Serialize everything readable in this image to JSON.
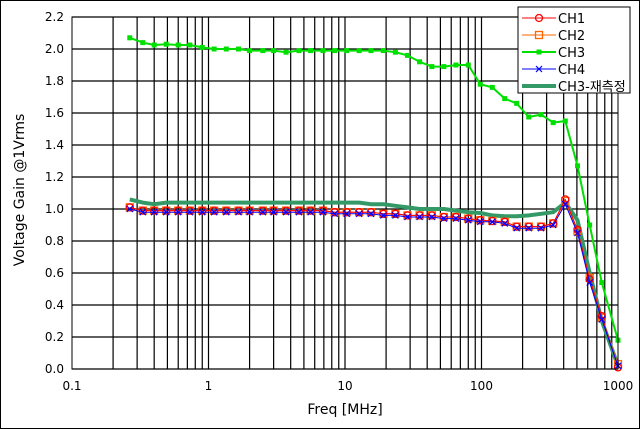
{
  "chart_data": {
    "type": "line",
    "title": "",
    "xlabel": "Freq [MHz]",
    "ylabel": "Voltage Gain @1Vrms",
    "xscale": "log",
    "xlim": [
      0.1,
      1000
    ],
    "ylim": [
      0,
      2.2
    ],
    "grid": true,
    "legend_position": "top-right",
    "x_ticks": [
      "0.1",
      "1",
      "10",
      "100",
      "1000"
    ],
    "y_ticks": [
      "0.0",
      "0.2",
      "0.4",
      "0.6",
      "0.8",
      "1.0",
      "1.2",
      "1.4",
      "1.6",
      "1.8",
      "2.0",
      "2.2"
    ],
    "x": [
      0.265,
      0.33,
      0.4,
      0.49,
      0.6,
      0.73,
      0.9,
      1.1,
      1.35,
      1.66,
      2.0,
      2.5,
      3.0,
      3.7,
      4.6,
      5.6,
      6.9,
      8.4,
      10.3,
      12.7,
      15.5,
      19.1,
      23.4,
      28.7,
      35.2,
      43.3,
      53,
      65,
      80,
      98,
      120,
      148,
      181,
      222,
      273,
      335,
      411,
      505,
      620,
      761,
      1000
    ],
    "series": [
      {
        "name": "CH1",
        "color": "#ff0000",
        "marker": "circle",
        "width": 1,
        "values": [
          1.01,
          0.99,
          0.99,
          0.99,
          0.99,
          0.99,
          0.99,
          0.99,
          0.99,
          0.99,
          0.99,
          0.99,
          0.99,
          0.99,
          0.99,
          0.99,
          0.99,
          0.98,
          0.98,
          0.98,
          0.98,
          0.97,
          0.97,
          0.96,
          0.96,
          0.96,
          0.95,
          0.95,
          0.94,
          0.93,
          0.925,
          0.92,
          0.89,
          0.89,
          0.89,
          0.91,
          1.06,
          0.87,
          0.56,
          0.33,
          0.01
        ]
      },
      {
        "name": "CH2",
        "color": "#ff6600",
        "marker": "square",
        "width": 1,
        "values": [
          1.01,
          0.99,
          0.99,
          0.99,
          0.99,
          0.99,
          0.99,
          0.99,
          0.99,
          0.99,
          0.99,
          0.99,
          0.99,
          0.99,
          0.99,
          0.99,
          0.99,
          0.98,
          0.98,
          0.98,
          0.98,
          0.97,
          0.97,
          0.96,
          0.96,
          0.96,
          0.95,
          0.95,
          0.94,
          0.93,
          0.925,
          0.92,
          0.89,
          0.89,
          0.89,
          0.91,
          1.05,
          0.86,
          0.57,
          0.32,
          0.03
        ]
      },
      {
        "name": "CH3",
        "color": "#00e000",
        "marker": "filled-square",
        "width": 2,
        "values": [
          2.07,
          2.04,
          2.025,
          2.03,
          2.025,
          2.025,
          2.01,
          2.0,
          2.0,
          2.0,
          1.99,
          1.99,
          1.99,
          1.98,
          1.99,
          1.99,
          1.99,
          1.99,
          1.99,
          1.99,
          1.99,
          1.99,
          1.98,
          1.96,
          1.92,
          1.89,
          1.89,
          1.9,
          1.9,
          1.78,
          1.76,
          1.69,
          1.66,
          1.575,
          1.59,
          1.54,
          1.55,
          1.27,
          0.9,
          0.54,
          0.18
        ]
      },
      {
        "name": "CH4",
        "color": "#0000ff",
        "marker": "x",
        "width": 1,
        "values": [
          1.0,
          0.98,
          0.98,
          0.98,
          0.98,
          0.98,
          0.98,
          0.98,
          0.98,
          0.98,
          0.98,
          0.98,
          0.98,
          0.98,
          0.98,
          0.98,
          0.98,
          0.97,
          0.97,
          0.97,
          0.97,
          0.96,
          0.96,
          0.95,
          0.95,
          0.95,
          0.94,
          0.94,
          0.93,
          0.92,
          0.92,
          0.91,
          0.88,
          0.88,
          0.88,
          0.9,
          1.03,
          0.85,
          0.54,
          0.31,
          0.02
        ]
      },
      {
        "name": "CH3-재측정",
        "color": "#339966",
        "marker": "none",
        "width": 4,
        "values": [
          1.06,
          1.04,
          1.03,
          1.04,
          1.04,
          1.04,
          1.04,
          1.04,
          1.04,
          1.04,
          1.04,
          1.04,
          1.04,
          1.04,
          1.04,
          1.04,
          1.04,
          1.04,
          1.04,
          1.04,
          1.03,
          1.03,
          1.02,
          1.01,
          1.0,
          1.0,
          1.0,
          0.99,
          0.98,
          0.975,
          0.96,
          0.955,
          0.955,
          0.96,
          0.97,
          0.98,
          1.04,
          0.93,
          0.6,
          0.3,
          0.02
        ]
      }
    ]
  }
}
